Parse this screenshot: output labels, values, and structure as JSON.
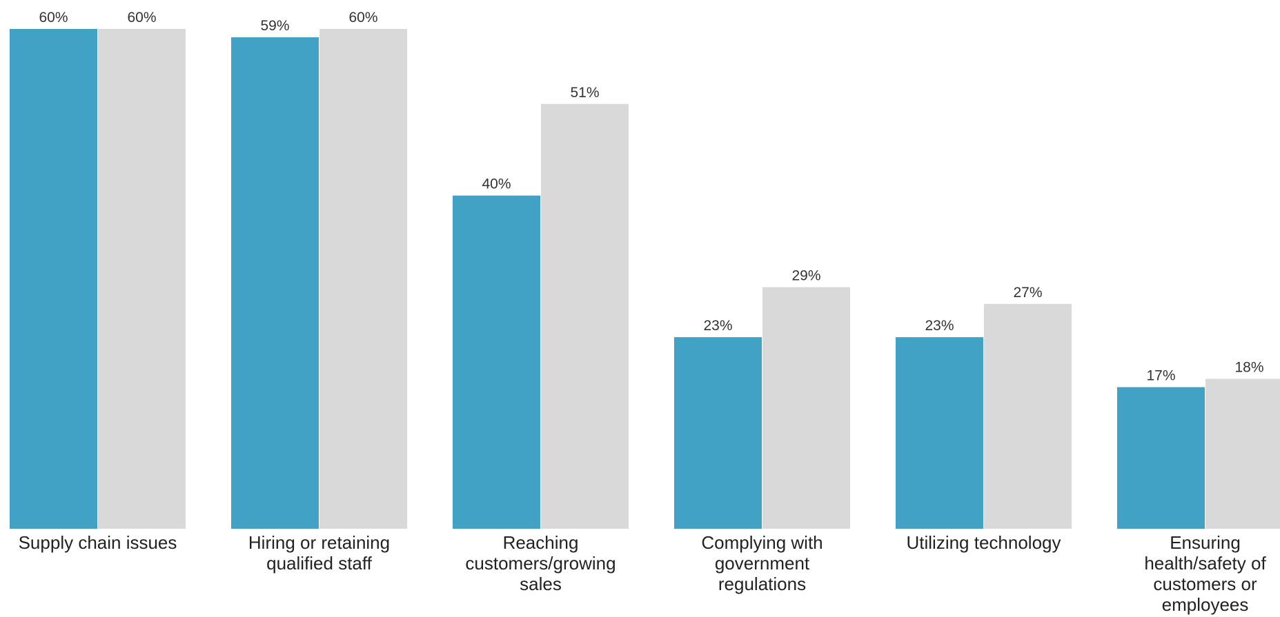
{
  "chart_data": {
    "type": "bar",
    "categories": [
      "Supply chain issues",
      "Hiring or retaining qualified staff",
      "Reaching customers/growing sales",
      "Complying with government regulations",
      "Utilizing technology",
      "Ensuring health/safety of customers or employees"
    ],
    "category_lines": [
      [
        "Supply chain issues"
      ],
      [
        "Hiring or retaining",
        "qualified staff"
      ],
      [
        "Reaching",
        "customers/growing",
        "sales"
      ],
      [
        "Complying with",
        "government",
        "regulations"
      ],
      [
        "Utilizing technology"
      ],
      [
        "Ensuring",
        "health/safety of",
        "customers or",
        "employees"
      ]
    ],
    "series": [
      {
        "values": [
          60,
          59,
          40,
          23,
          23,
          17
        ],
        "labels": [
          "60%",
          "59%",
          "40%",
          "23%",
          "23%",
          "17%"
        ],
        "color": "#42a2c6"
      },
      {
        "values": [
          60,
          60,
          51,
          29,
          27,
          18
        ],
        "labels": [
          "60%",
          "60%",
          "51%",
          "29%",
          "27%",
          "18%"
        ],
        "color": "#d9d9d9"
      }
    ],
    "ylim": [
      0,
      60
    ],
    "grid": false,
    "legend": "none",
    "title": "",
    "xlabel": "",
    "ylabel": ""
  }
}
